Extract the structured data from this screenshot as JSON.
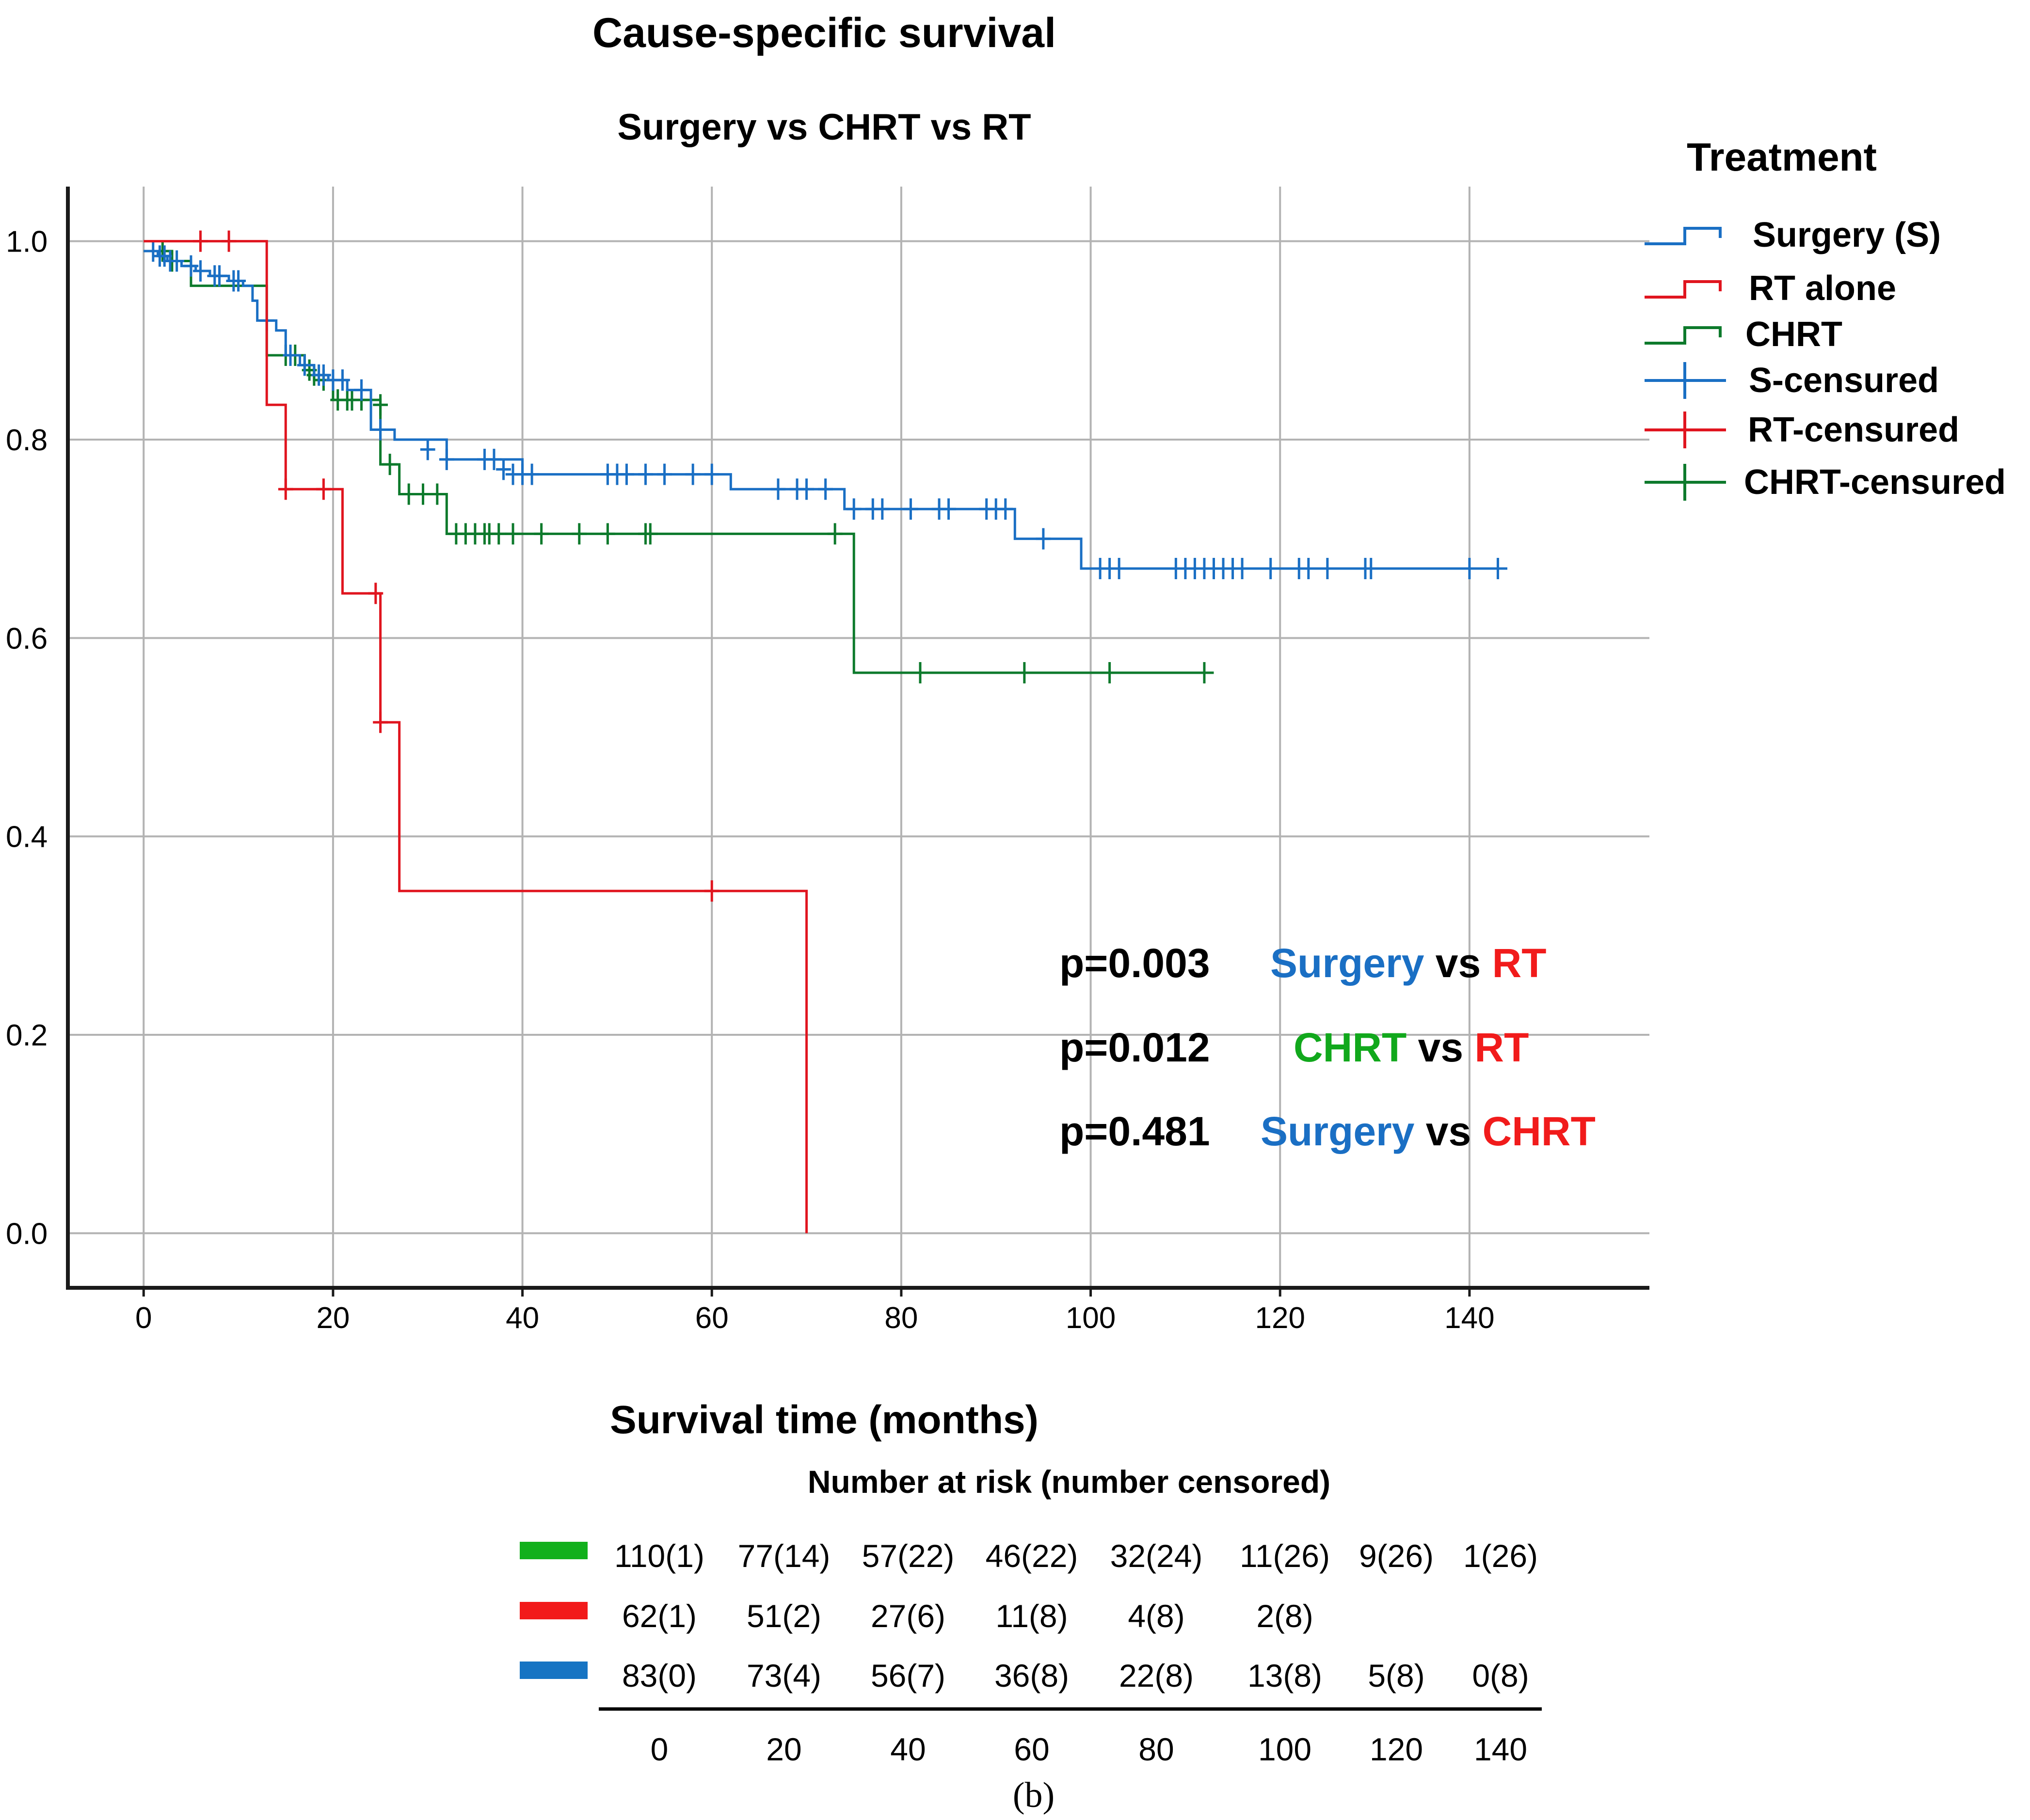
{
  "figure": {
    "title": "Cause-specific survival",
    "subtitle": "Surgery vs CHRT vs RT",
    "panel_label": "(b)"
  },
  "colors": {
    "surgery": "#1a6fc4",
    "rt": "#e0151f",
    "chrt": "#0d7a2c",
    "chrt_text": "#11a81c",
    "rt_text": "#f11b1b",
    "grid": "#b3b3b3",
    "axis": "#1a1a1a",
    "legend_chrt_bar": "#12b01c",
    "legend_rt_bar": "#f21a1a",
    "legend_s_bar": "#1674c3"
  },
  "legend": {
    "title": "Treatment",
    "items": [
      {
        "label": "Surgery (S)",
        "color_key": "surgery",
        "kind": "step"
      },
      {
        "label": "RT alone",
        "color_key": "rt",
        "kind": "step"
      },
      {
        "label": "CHRT",
        "color_key": "chrt",
        "kind": "step"
      },
      {
        "label": "S-censured",
        "color_key": "surgery",
        "kind": "cross"
      },
      {
        "label": "RT-censured",
        "color_key": "rt",
        "kind": "cross"
      },
      {
        "label": "CHRT-censured",
        "color_key": "chrt",
        "kind": "cross"
      }
    ]
  },
  "pvalues": [
    {
      "p": "p=0.003",
      "a": "Surgery",
      "a_color": "surgery",
      "vs": "vs",
      "b": "RT",
      "b_color": "rt_text"
    },
    {
      "p": "p=0.012",
      "a": "CHRT",
      "a_color": "chrt_text",
      "vs": "vs",
      "b": "RT",
      "b_color": "rt_text"
    },
    {
      "p": "p=0.481",
      "a": "Surgery",
      "a_color": "surgery",
      "vs": "vs",
      "b": "CHRT",
      "b_color": "rt_text"
    }
  ],
  "risk_table": {
    "title": "Number at risk (number censored)",
    "times": [
      "0",
      "20",
      "40",
      "60",
      "80",
      "100",
      "120",
      "140"
    ],
    "rows": [
      {
        "color_key": "legend_chrt_bar",
        "cells": [
          "110(1)",
          "77(14)",
          "57(22)",
          "46(22)",
          "32(24)",
          "11(26)",
          "9(26)",
          "1(26)"
        ]
      },
      {
        "color_key": "legend_rt_bar",
        "cells": [
          "62(1)",
          "51(2)",
          "27(6)",
          "11(8)",
          "4(8)",
          "2(8)",
          "",
          ""
        ]
      },
      {
        "color_key": "legend_s_bar",
        "cells": [
          "83(0)",
          "73(4)",
          "56(7)",
          "36(8)",
          "22(8)",
          "13(8)",
          "5(8)",
          "0(8)"
        ]
      }
    ]
  },
  "chart_data": {
    "type": "line",
    "subtype": "kaplan-meier step",
    "title": "Cause-specific survival",
    "subtitle": "Surgery vs CHRT vs RT",
    "xlabel": "Survival time (months)",
    "ylabel": "",
    "xlim": [
      -8,
      159
    ],
    "ylim": [
      -0.055,
      1.055
    ],
    "xticks": [
      0,
      20,
      40,
      60,
      80,
      100,
      120,
      140
    ],
    "xtick_labels": [
      "0",
      "20",
      "40",
      "60",
      "80",
      "100",
      "120",
      "140"
    ],
    "yticks": [
      0.0,
      0.2,
      0.4,
      0.6,
      0.8,
      1.0
    ],
    "ytick_labels": [
      "0.0",
      "0.2",
      "0.4",
      "0.6",
      "0.8",
      "1.0"
    ],
    "grid": true,
    "legend_position": "right",
    "series": [
      {
        "name": "Surgery (S)",
        "color_key": "surgery",
        "steps": [
          [
            0,
            0.99
          ],
          [
            1.5,
            0.985
          ],
          [
            2.5,
            0.98
          ],
          [
            4,
            0.975
          ],
          [
            5.5,
            0.97
          ],
          [
            7,
            0.965
          ],
          [
            9,
            0.96
          ],
          [
            10.5,
            0.955
          ],
          [
            11.5,
            0.94
          ],
          [
            12,
            0.92
          ],
          [
            14,
            0.91
          ],
          [
            15,
            0.885
          ],
          [
            16.5,
            0.875
          ],
          [
            18,
            0.865
          ],
          [
            19.5,
            0.86
          ],
          [
            21.5,
            0.85
          ],
          [
            24,
            0.81
          ],
          [
            26.5,
            0.8
          ],
          [
            32,
            0.78
          ],
          [
            40,
            0.765
          ],
          [
            62,
            0.75
          ],
          [
            74,
            0.73
          ],
          [
            92,
            0.7
          ],
          [
            99,
            0.67
          ],
          [
            144,
            0.67
          ]
        ],
        "censored": [
          [
            1,
            0.99
          ],
          [
            1.7,
            0.985
          ],
          [
            2.2,
            0.985
          ],
          [
            2.8,
            0.98
          ],
          [
            3.5,
            0.98
          ],
          [
            5,
            0.975
          ],
          [
            6,
            0.97
          ],
          [
            7.5,
            0.965
          ],
          [
            8,
            0.965
          ],
          [
            9.5,
            0.96
          ],
          [
            10,
            0.96
          ],
          [
            13,
            0.92
          ],
          [
            15.5,
            0.885
          ],
          [
            17,
            0.875
          ],
          [
            18.5,
            0.865
          ],
          [
            19,
            0.865
          ],
          [
            20,
            0.86
          ],
          [
            21,
            0.86
          ],
          [
            23,
            0.85
          ],
          [
            25,
            0.81
          ],
          [
            30,
            0.79
          ],
          [
            32,
            0.78
          ],
          [
            36,
            0.78
          ],
          [
            37,
            0.78
          ],
          [
            38,
            0.77
          ],
          [
            39,
            0.765
          ],
          [
            40,
            0.765
          ],
          [
            41,
            0.765
          ],
          [
            49,
            0.765
          ],
          [
            50,
            0.765
          ],
          [
            51,
            0.765
          ],
          [
            53,
            0.765
          ],
          [
            55,
            0.765
          ],
          [
            58,
            0.765
          ],
          [
            60,
            0.765
          ],
          [
            67,
            0.75
          ],
          [
            69,
            0.75
          ],
          [
            70,
            0.75
          ],
          [
            72,
            0.75
          ],
          [
            75,
            0.73
          ],
          [
            77,
            0.73
          ],
          [
            78,
            0.73
          ],
          [
            81,
            0.73
          ],
          [
            84,
            0.73
          ],
          [
            85,
            0.73
          ],
          [
            89,
            0.73
          ],
          [
            90,
            0.73
          ],
          [
            91,
            0.73
          ],
          [
            95,
            0.7
          ],
          [
            101,
            0.67
          ],
          [
            102,
            0.67
          ],
          [
            103,
            0.67
          ],
          [
            109,
            0.67
          ],
          [
            110,
            0.67
          ],
          [
            111,
            0.67
          ],
          [
            112,
            0.67
          ],
          [
            113,
            0.67
          ],
          [
            114,
            0.67
          ],
          [
            115,
            0.67
          ],
          [
            116,
            0.67
          ],
          [
            119,
            0.67
          ],
          [
            122,
            0.67
          ],
          [
            123,
            0.67
          ],
          [
            125,
            0.67
          ],
          [
            129,
            0.67
          ],
          [
            129.6,
            0.67
          ],
          [
            140,
            0.67
          ],
          [
            143,
            0.67
          ]
        ]
      },
      {
        "name": "RT alone",
        "color_key": "rt",
        "steps": [
          [
            0,
            1.0
          ],
          [
            13,
            0.835
          ],
          [
            15,
            0.75
          ],
          [
            21,
            0.645
          ],
          [
            25,
            0.515
          ],
          [
            27,
            0.345
          ],
          [
            70,
            0.0
          ]
        ],
        "censored": [
          [
            6,
            1.0
          ],
          [
            9,
            1.0
          ],
          [
            15,
            0.75
          ],
          [
            19,
            0.75
          ],
          [
            24.5,
            0.645
          ],
          [
            25,
            0.515
          ],
          [
            60,
            0.345
          ]
        ]
      },
      {
        "name": "CHRT",
        "color_key": "chrt",
        "steps": [
          [
            0,
            0.99
          ],
          [
            3,
            0.98
          ],
          [
            5,
            0.955
          ],
          [
            13,
            0.885
          ],
          [
            17,
            0.87
          ],
          [
            18,
            0.86
          ],
          [
            20,
            0.84
          ],
          [
            25,
            0.775
          ],
          [
            27,
            0.745
          ],
          [
            32,
            0.705
          ],
          [
            75,
            0.565
          ],
          [
            113,
            0.565
          ]
        ],
        "censored": [
          [
            2,
            0.99
          ],
          [
            3,
            0.98
          ],
          [
            15,
            0.885
          ],
          [
            16,
            0.885
          ],
          [
            17.5,
            0.87
          ],
          [
            18,
            0.865
          ],
          [
            19,
            0.86
          ],
          [
            20.5,
            0.84
          ],
          [
            21.5,
            0.84
          ],
          [
            22,
            0.84
          ],
          [
            23,
            0.84
          ],
          [
            25,
            0.835
          ],
          [
            26,
            0.775
          ],
          [
            28,
            0.745
          ],
          [
            29.5,
            0.745
          ],
          [
            31,
            0.745
          ],
          [
            33,
            0.705
          ],
          [
            34,
            0.705
          ],
          [
            35,
            0.705
          ],
          [
            36,
            0.705
          ],
          [
            36.5,
            0.705
          ],
          [
            37.5,
            0.705
          ],
          [
            39,
            0.705
          ],
          [
            42,
            0.705
          ],
          [
            46,
            0.705
          ],
          [
            49,
            0.705
          ],
          [
            53,
            0.705
          ],
          [
            53.5,
            0.705
          ],
          [
            73,
            0.705
          ],
          [
            82,
            0.565
          ],
          [
            93,
            0.565
          ],
          [
            102,
            0.565
          ],
          [
            112,
            0.565
          ]
        ]
      }
    ],
    "annotations": [
      "p=0.003 Surgery vs RT",
      "p=0.012 CHRT vs RT",
      "p=0.481 Surgery vs CHRT"
    ],
    "number_at_risk": {
      "times": [
        0,
        20,
        40,
        60,
        80,
        100,
        120,
        140
      ],
      "CHRT": [
        "110(1)",
        "77(14)",
        "57(22)",
        "46(22)",
        "32(24)",
        "11(26)",
        "9(26)",
        "1(26)"
      ],
      "RT alone": [
        "62(1)",
        "51(2)",
        "27(6)",
        "11(8)",
        "4(8)",
        "2(8)",
        "",
        ""
      ],
      "Surgery (S)": [
        "83(0)",
        "73(4)",
        "56(7)",
        "36(8)",
        "22(8)",
        "13(8)",
        "5(8)",
        "0(8)"
      ]
    }
  }
}
